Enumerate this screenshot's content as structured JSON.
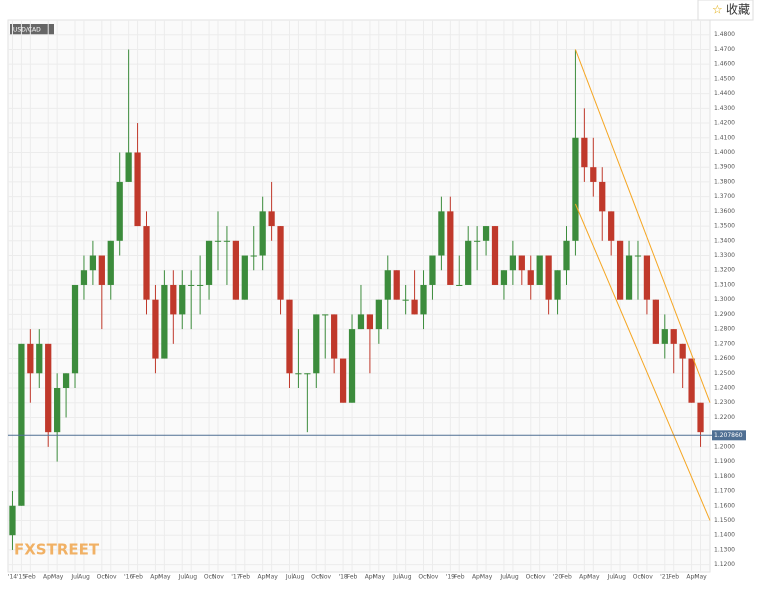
{
  "chart_data": {
    "type": "candlestick",
    "button": "收藏",
    "logo": "FXSTREET",
    "categories": [
      "'14",
      "'15",
      "Feb",
      null,
      "Apr",
      "May",
      null,
      "Jul",
      "Aug",
      null,
      "Oct",
      "Nov",
      null,
      "'16",
      "Feb",
      null,
      "Apr",
      "May",
      null,
      "Jul",
      "Aug",
      null,
      "Oct",
      "Nov",
      null,
      "'17",
      "Feb",
      null,
      "Apr",
      "May",
      null,
      "Jul",
      "Aug",
      null,
      "Oct",
      "Nov",
      null,
      "'18",
      "Feb",
      null,
      "Apr",
      "May",
      null,
      "Jul",
      "Aug",
      null,
      "Oct",
      "Nov",
      null,
      "'19",
      "Feb",
      null,
      "Apr",
      "May",
      null,
      "Jul",
      "Aug",
      null,
      "Oct",
      "Nov",
      null,
      "'20",
      "Feb",
      null,
      "Apr",
      "May",
      null,
      "Jul",
      "Aug",
      null,
      "Oct",
      "Nov",
      null,
      "'21",
      "Feb",
      null,
      "Apr",
      "May"
    ],
    "series": [
      {
        "name": "USD/CAD",
        "up_color": "#3c8c3c",
        "down_color": "#c0392b",
        "open": [
          1.14,
          1.16,
          1.27,
          1.25,
          1.27,
          1.21,
          1.24,
          1.25,
          1.31,
          1.32,
          1.33,
          1.31,
          1.34,
          1.38,
          1.4,
          1.35,
          1.3,
          1.26,
          1.31,
          1.29,
          1.31,
          1.31,
          1.31,
          1.34,
          1.34,
          1.34,
          1.3,
          1.33,
          1.33,
          1.36,
          1.35,
          1.3,
          1.25,
          1.25,
          1.25,
          1.29,
          1.29,
          1.26,
          1.23,
          1.28,
          1.29,
          1.28,
          1.3,
          1.32,
          1.3,
          1.3,
          1.29,
          1.31,
          1.33,
          1.36,
          1.31,
          1.31,
          1.34,
          1.34,
          1.35,
          1.31,
          1.32,
          1.33,
          1.32,
          1.31,
          1.33,
          1.3,
          1.32,
          1.34,
          1.41,
          1.39,
          1.38,
          1.36,
          1.34,
          1.3,
          1.33,
          1.33,
          1.3,
          1.27,
          1.28,
          1.27,
          1.26,
          1.23
        ],
        "high": [
          1.17,
          1.27,
          1.28,
          1.28,
          1.27,
          1.25,
          1.25,
          1.31,
          1.33,
          1.34,
          1.33,
          1.34,
          1.4,
          1.47,
          1.42,
          1.36,
          1.31,
          1.32,
          1.32,
          1.32,
          1.32,
          1.33,
          1.34,
          1.36,
          1.35,
          1.34,
          1.33,
          1.35,
          1.37,
          1.38,
          1.35,
          1.3,
          1.28,
          1.25,
          1.29,
          1.29,
          1.29,
          1.26,
          1.29,
          1.31,
          1.29,
          1.3,
          1.33,
          1.32,
          1.31,
          1.32,
          1.32,
          1.33,
          1.37,
          1.37,
          1.33,
          1.35,
          1.35,
          1.35,
          1.35,
          1.32,
          1.34,
          1.33,
          1.33,
          1.33,
          1.33,
          1.32,
          1.35,
          1.47,
          1.43,
          1.41,
          1.39,
          1.36,
          1.34,
          1.34,
          1.34,
          1.33,
          1.3,
          1.29,
          1.28,
          1.27,
          1.26,
          1.23
        ],
        "low": [
          1.13,
          1.16,
          1.23,
          1.24,
          1.2,
          1.19,
          1.22,
          1.24,
          1.3,
          1.31,
          1.28,
          1.3,
          1.33,
          1.38,
          1.35,
          1.29,
          1.25,
          1.26,
          1.27,
          1.28,
          1.28,
          1.29,
          1.3,
          1.32,
          1.31,
          1.3,
          1.3,
          1.32,
          1.32,
          1.34,
          1.29,
          1.24,
          1.24,
          1.21,
          1.24,
          1.26,
          1.25,
          1.23,
          1.23,
          1.28,
          1.25,
          1.27,
          1.28,
          1.3,
          1.29,
          1.29,
          1.28,
          1.3,
          1.32,
          1.31,
          1.31,
          1.31,
          1.32,
          1.33,
          1.31,
          1.3,
          1.31,
          1.31,
          1.3,
          1.31,
          1.29,
          1.29,
          1.31,
          1.33,
          1.38,
          1.37,
          1.34,
          1.33,
          1.3,
          1.3,
          1.3,
          1.29,
          1.27,
          1.26,
          1.25,
          1.24,
          1.23,
          1.2
        ],
        "close": [
          1.16,
          1.27,
          1.25,
          1.27,
          1.21,
          1.24,
          1.25,
          1.31,
          1.32,
          1.33,
          1.31,
          1.34,
          1.38,
          1.4,
          1.35,
          1.3,
          1.26,
          1.31,
          1.29,
          1.31,
          1.31,
          1.31,
          1.34,
          1.34,
          1.34,
          1.3,
          1.33,
          1.33,
          1.36,
          1.35,
          1.3,
          1.25,
          1.25,
          1.25,
          1.29,
          1.29,
          1.26,
          1.23,
          1.28,
          1.29,
          1.28,
          1.3,
          1.32,
          1.3,
          1.3,
          1.29,
          1.31,
          1.33,
          1.36,
          1.31,
          1.31,
          1.34,
          1.34,
          1.35,
          1.31,
          1.32,
          1.33,
          1.32,
          1.31,
          1.33,
          1.3,
          1.32,
          1.34,
          1.41,
          1.39,
          1.38,
          1.36,
          1.34,
          1.3,
          1.33,
          1.33,
          1.3,
          1.27,
          1.28,
          1.27,
          1.26,
          1.23,
          1.21
        ]
      }
    ],
    "channel": {
      "color": "#f5a623",
      "lines": [
        {
          "start": 1.47,
          "end": 1.23
        },
        {
          "start": 1.365,
          "end": 1.15
        }
      ]
    },
    "last_price": {
      "value": 1.20786,
      "label": "1.207860",
      "color": "#4f6f93"
    },
    "ylim": [
      1.115,
      1.49
    ],
    "yticks": [
      {
        "value": 1.12,
        "label": "1.1200"
      },
      {
        "value": 1.13,
        "label": "1.1300"
      },
      {
        "value": 1.14,
        "label": "1.1400"
      },
      {
        "value": 1.15,
        "label": "1.1500"
      },
      {
        "value": 1.16,
        "label": "1.1600"
      },
      {
        "value": 1.17,
        "label": "1.1700"
      },
      {
        "value": 1.18,
        "label": "1.1800"
      },
      {
        "value": 1.19,
        "label": "1.1900"
      },
      {
        "value": 1.2,
        "label": "1.2000"
      },
      {
        "value": 1.22,
        "label": "1.2200"
      },
      {
        "value": 1.23,
        "label": "1.2300"
      },
      {
        "value": 1.24,
        "label": "1.2400"
      },
      {
        "value": 1.25,
        "label": "1.2500"
      },
      {
        "value": 1.26,
        "label": "1.2600"
      },
      {
        "value": 1.27,
        "label": "1.2700"
      },
      {
        "value": 1.28,
        "label": "1.2800"
      },
      {
        "value": 1.29,
        "label": "1.2900"
      },
      {
        "value": 1.3,
        "label": "1.3000"
      },
      {
        "value": 1.31,
        "label": "1.3100"
      },
      {
        "value": 1.32,
        "label": "1.3200"
      },
      {
        "value": 1.33,
        "label": "1.3300"
      },
      {
        "value": 1.34,
        "label": "1.3400"
      },
      {
        "value": 1.35,
        "label": "1.3500"
      },
      {
        "value": 1.36,
        "label": "1.3600"
      },
      {
        "value": 1.37,
        "label": "1.3700"
      },
      {
        "value": 1.38,
        "label": "1.3800"
      },
      {
        "value": 1.39,
        "label": "1.3900"
      },
      {
        "value": 1.4,
        "label": "1.4000"
      },
      {
        "value": 1.41,
        "label": "1.4100"
      },
      {
        "value": 1.42,
        "label": "1.4200"
      },
      {
        "value": 1.43,
        "label": "1.4300"
      },
      {
        "value": 1.44,
        "label": "1.4400"
      },
      {
        "value": 1.45,
        "label": "1.4500"
      },
      {
        "value": 1.46,
        "label": "1.4600"
      },
      {
        "value": 1.47,
        "label": "1.4700"
      },
      {
        "value": 1.48,
        "label": "1.4800"
      }
    ],
    "grid": true
  }
}
